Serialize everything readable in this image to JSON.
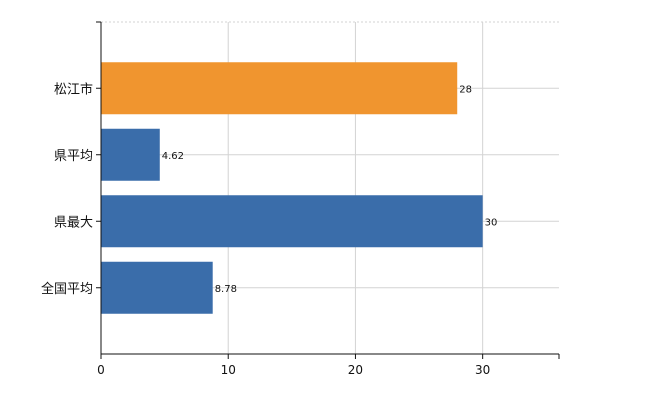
{
  "chart_data": {
    "type": "bar",
    "orientation": "horizontal",
    "categories": [
      "松江市",
      "県平均",
      "県最大",
      "全国平均"
    ],
    "values": [
      28,
      4.62,
      30,
      8.78
    ],
    "value_labels": [
      "28",
      "4.62",
      "30",
      "8.78"
    ],
    "bar_colors": [
      "#F0952F",
      "#3A6DAA",
      "#3A6DAA",
      "#3A6DAA"
    ],
    "xlim": [
      0,
      36
    ],
    "xticks": [
      0,
      10,
      20,
      30
    ],
    "xtick_labels": [
      "0",
      "10",
      "20",
      "30"
    ],
    "grid": true,
    "legend": "none",
    "title": "",
    "xlabel": "",
    "ylabel": ""
  }
}
